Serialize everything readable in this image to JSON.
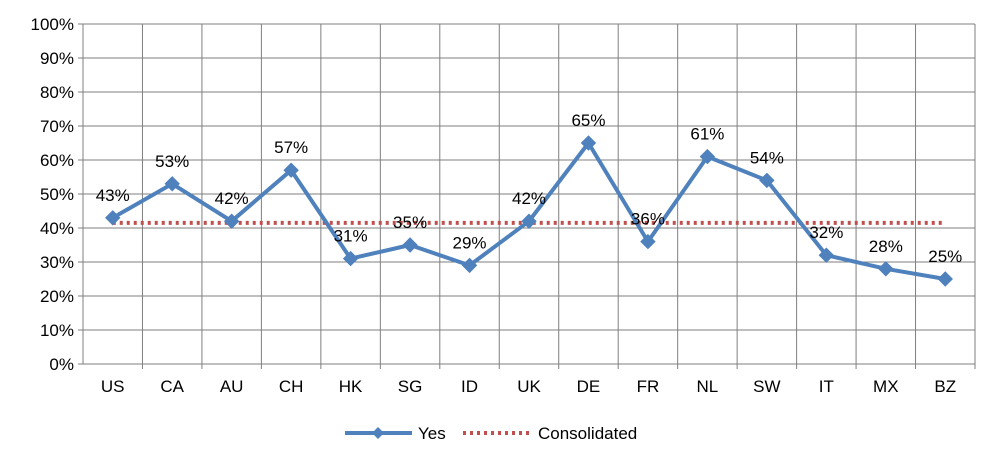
{
  "chart_data": {
    "type": "line",
    "categories": [
      "US",
      "CA",
      "AU",
      "CH",
      "HK",
      "SG",
      "ID",
      "UK",
      "DE",
      "FR",
      "NL",
      "SW",
      "IT",
      "MX",
      "BZ"
    ],
    "series": [
      {
        "name": "Yes",
        "values": [
          43,
          53,
          42,
          57,
          31,
          35,
          29,
          42,
          65,
          36,
          61,
          54,
          32,
          28,
          25
        ],
        "data_labels": [
          "43%",
          "53%",
          "42%",
          "57%",
          "31%",
          "35%",
          "29%",
          "42%",
          "65%",
          "36%",
          "61%",
          "54%",
          "32%",
          "28%",
          "25%"
        ],
        "color": "#4F81BD",
        "style": "solid-diamond-markers"
      },
      {
        "name": "Consolidated",
        "values": [
          41.5,
          41.5,
          41.5,
          41.5,
          41.5,
          41.5,
          41.5,
          41.5,
          41.5,
          41.5,
          41.5,
          41.5,
          41.5,
          41.5,
          41.5
        ],
        "color": "#C0504D",
        "style": "dotted"
      }
    ],
    "ylim": [
      0,
      100
    ],
    "yticks": [
      "0%",
      "10%",
      "20%",
      "30%",
      "40%",
      "50%",
      "60%",
      "70%",
      "80%",
      "90%",
      "100%"
    ],
    "grid": true,
    "legend_position": "bottom"
  }
}
